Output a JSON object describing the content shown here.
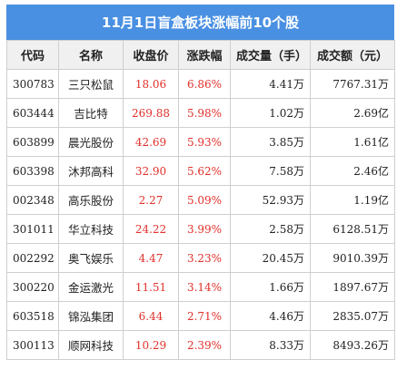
{
  "title": "11月1日盲盒板块涨幅前10个股",
  "colors": {
    "header_bg": "#4a90e2",
    "up": "#e0312b"
  },
  "columns": [
    "代码",
    "名称",
    "收盘价",
    "涨跌幅",
    "成交量（手）",
    "成交额（元）"
  ],
  "rows": [
    {
      "code": "300783",
      "name": "三只松鼠",
      "price": "18.06",
      "pct": "6.86%",
      "vol": "4.41万",
      "amt": "7767.31万"
    },
    {
      "code": "603444",
      "name": "吉比特",
      "price": "269.88",
      "pct": "5.98%",
      "vol": "1.02万",
      "amt": "2.69亿"
    },
    {
      "code": "603899",
      "name": "晨光股份",
      "price": "42.69",
      "pct": "5.93%",
      "vol": "3.85万",
      "amt": "1.61亿"
    },
    {
      "code": "603398",
      "name": "沐邦高科",
      "price": "32.90",
      "pct": "5.62%",
      "vol": "7.58万",
      "amt": "2.46亿"
    },
    {
      "code": "002348",
      "name": "高乐股份",
      "price": "2.27",
      "pct": "5.09%",
      "vol": "52.93万",
      "amt": "1.19亿"
    },
    {
      "code": "301011",
      "name": "华立科技",
      "price": "24.22",
      "pct": "3.99%",
      "vol": "2.58万",
      "amt": "6128.51万"
    },
    {
      "code": "002292",
      "name": "奥飞娱乐",
      "price": "4.47",
      "pct": "3.23%",
      "vol": "20.45万",
      "amt": "9010.39万"
    },
    {
      "code": "300220",
      "name": "金运激光",
      "price": "11.51",
      "pct": "3.14%",
      "vol": "1.66万",
      "amt": "1897.67万"
    },
    {
      "code": "603518",
      "name": "锦泓集团",
      "price": "6.44",
      "pct": "2.71%",
      "vol": "4.46万",
      "amt": "2835.07万"
    },
    {
      "code": "300113",
      "name": "顺网科技",
      "price": "10.29",
      "pct": "2.39%",
      "vol": "8.33万",
      "amt": "8493.26万"
    }
  ]
}
